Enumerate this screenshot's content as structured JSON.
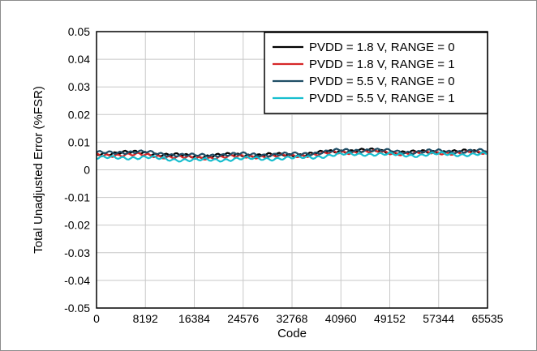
{
  "chart_data": {
    "type": "line",
    "xlabel": "Code",
    "ylabel": "Total Unadjusted Error (%FSR)",
    "xlim": [
      0,
      65535
    ],
    "ylim": [
      -0.05,
      0.05
    ],
    "x_ticks": [
      "0",
      "8192",
      "16384",
      "24576",
      "32768",
      "40960",
      "49152",
      "57344",
      "65535"
    ],
    "x_tick_values": [
      0,
      8192,
      16384,
      24576,
      32768,
      40960,
      49152,
      57344,
      65535
    ],
    "y_ticks": [
      "0.05",
      "0.04",
      "0.03",
      "0.02",
      "0.01",
      "0",
      "-0.01",
      "-0.02",
      "-0.03",
      "-0.04",
      "-0.05"
    ],
    "y_tick_values": [
      0.05,
      0.04,
      0.03,
      0.02,
      0.01,
      0,
      -0.01,
      -0.02,
      -0.03,
      -0.04,
      -0.05
    ],
    "grid": true,
    "legend_position": "top-right",
    "series": [
      {
        "name": "PVDD = 1.8 V, RANGE = 0",
        "color": "#000000",
        "x": [
          0,
          4096,
          8192,
          12288,
          16384,
          20480,
          24576,
          28672,
          32768,
          36864,
          40960,
          45056,
          49152,
          53248,
          57344,
          61440,
          65535
        ],
        "y": [
          0.0058,
          0.0063,
          0.0061,
          0.0054,
          0.0049,
          0.0053,
          0.0054,
          0.0054,
          0.0054,
          0.006,
          0.0069,
          0.0071,
          0.0066,
          0.0063,
          0.0067,
          0.0066,
          0.0066
        ]
      },
      {
        "name": "PVDD = 1.8 V, RANGE = 1",
        "color": "#d62728",
        "x": [
          0,
          4096,
          8192,
          12288,
          16384,
          20480,
          24576,
          28672,
          32768,
          36864,
          40960,
          45056,
          49152,
          53248,
          57344,
          61440,
          65535
        ],
        "y": [
          0.0052,
          0.0055,
          0.0053,
          0.0047,
          0.0042,
          0.0046,
          0.0048,
          0.0049,
          0.005,
          0.0056,
          0.0063,
          0.0066,
          0.0061,
          0.0059,
          0.0062,
          0.0061,
          0.0061
        ]
      },
      {
        "name": "PVDD = 5.5 V, RANGE = 0",
        "color": "#1f4e66",
        "x": [
          0,
          4096,
          8192,
          12288,
          16384,
          20480,
          24576,
          28672,
          32768,
          36864,
          40960,
          45056,
          49152,
          53248,
          57344,
          61440,
          65535
        ],
        "y": [
          0.006,
          0.0065,
          0.0063,
          0.0056,
          0.0051,
          0.0055,
          0.0056,
          0.0055,
          0.0056,
          0.0062,
          0.007,
          0.0072,
          0.0068,
          0.0064,
          0.0068,
          0.0067,
          0.0068
        ]
      },
      {
        "name": "PVDD = 5.5 V, RANGE = 1",
        "color": "#17becf",
        "x": [
          0,
          4096,
          8192,
          12288,
          16384,
          20480,
          24576,
          28672,
          32768,
          36864,
          40960,
          45056,
          49152,
          53248,
          57344,
          61440,
          65535
        ],
        "y": [
          0.0042,
          0.0045,
          0.0044,
          0.0039,
          0.0034,
          0.0037,
          0.004,
          0.0041,
          0.0042,
          0.0048,
          0.0055,
          0.0058,
          0.0055,
          0.0053,
          0.0057,
          0.0056,
          0.0056
        ]
      }
    ]
  }
}
